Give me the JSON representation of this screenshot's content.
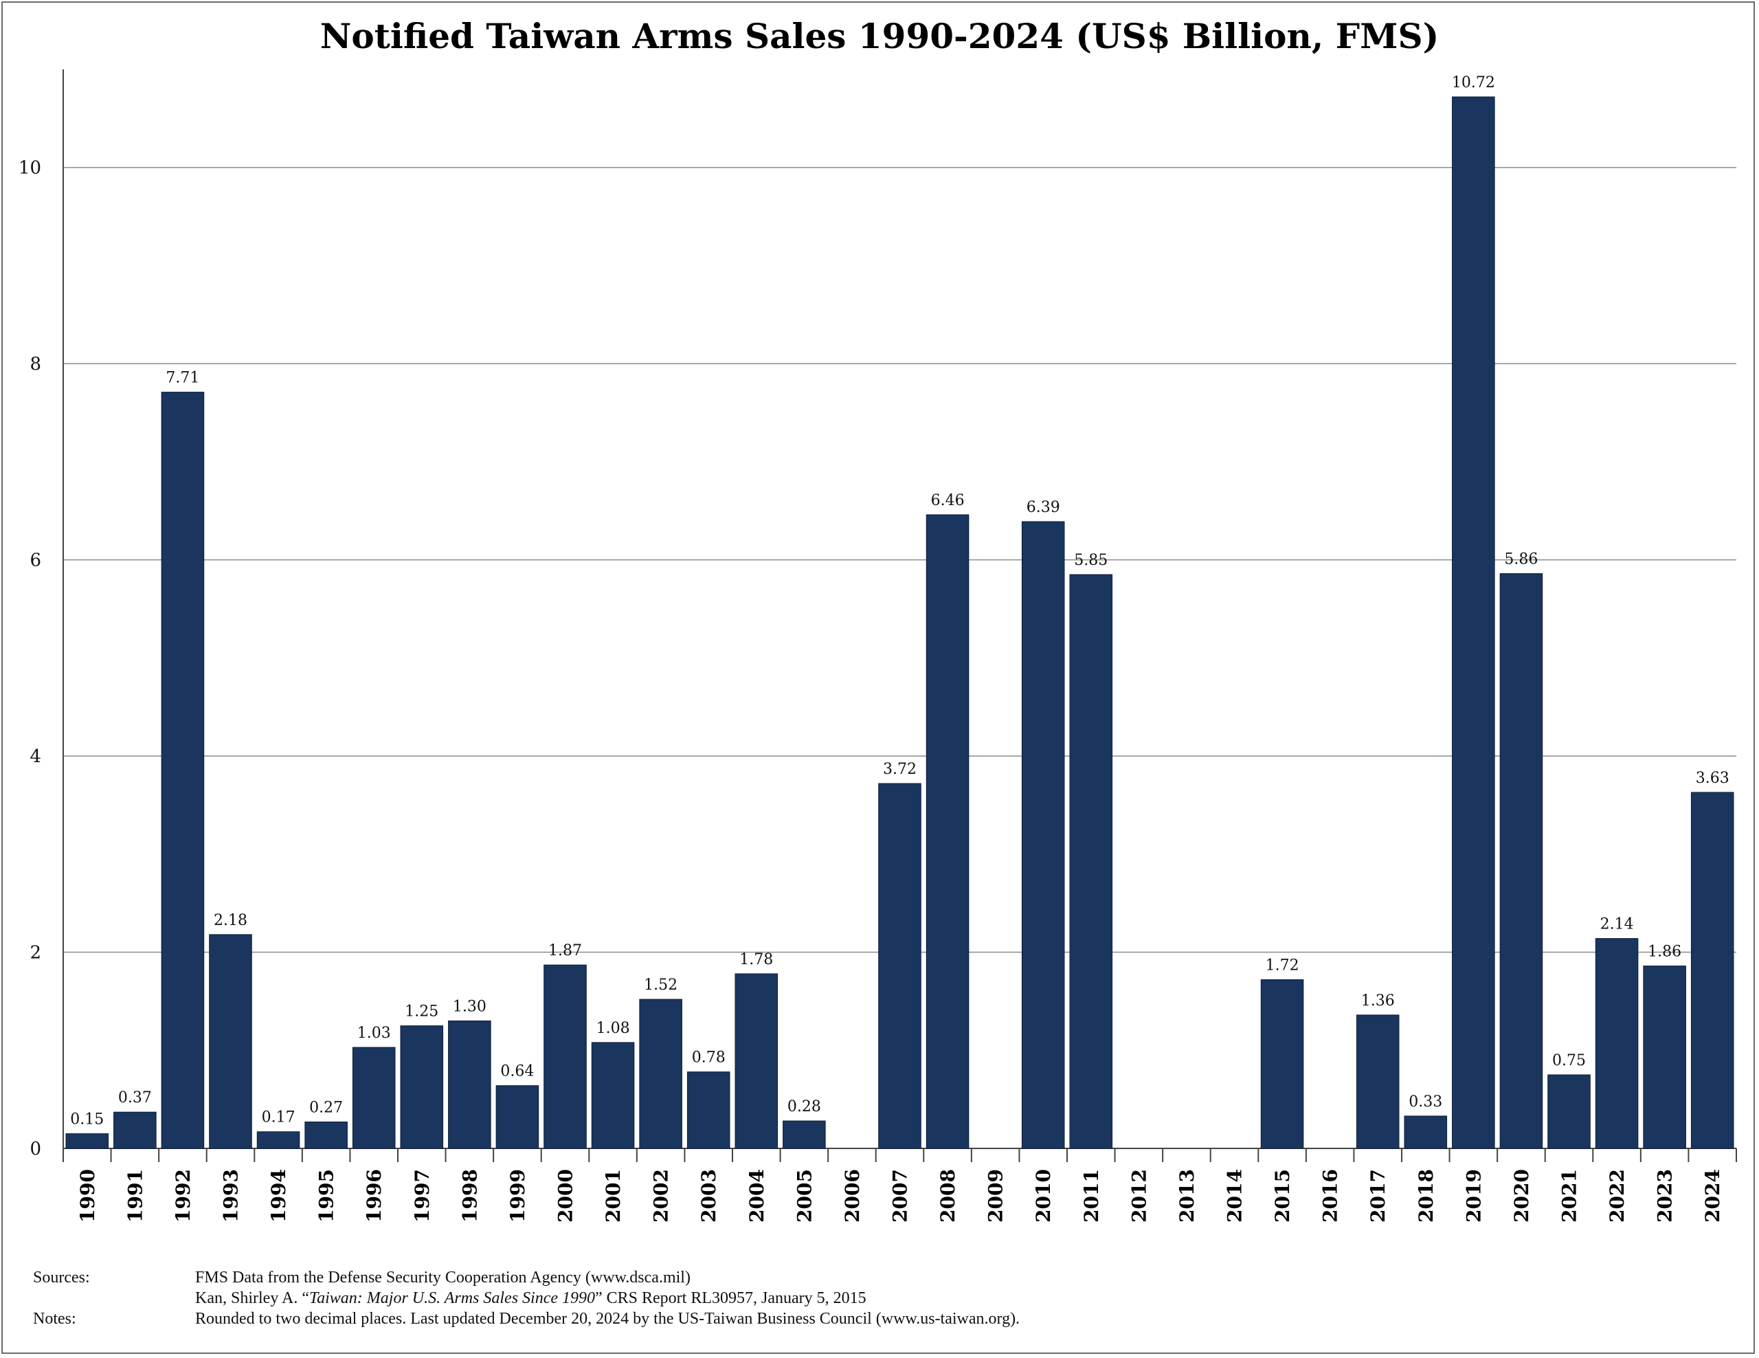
{
  "chart_data": {
    "type": "bar",
    "title": "Notified Taiwan Arms Sales 1990-2024 (US$ Billion, FMS)",
    "xlabel": "",
    "ylabel": "",
    "ylim": [
      0,
      11
    ],
    "yticks": [
      0,
      2,
      4,
      6,
      8,
      10
    ],
    "grid": true,
    "legend": "none",
    "bar_color": "#1a355e",
    "categories": [
      "1990",
      "1991",
      "1992",
      "1993",
      "1994",
      "1995",
      "1996",
      "1997",
      "1998",
      "1999",
      "2000",
      "2001",
      "2002",
      "2003",
      "2004",
      "2005",
      "2006",
      "2007",
      "2008",
      "2009",
      "2010",
      "2011",
      "2012",
      "2013",
      "2014",
      "2015",
      "2016",
      "2017",
      "2018",
      "2019",
      "2020",
      "2021",
      "2022",
      "2023",
      "2024"
    ],
    "values": [
      0.15,
      0.37,
      7.71,
      2.18,
      0.17,
      0.27,
      1.03,
      1.25,
      1.3,
      0.64,
      1.87,
      1.08,
      1.52,
      0.78,
      1.78,
      0.28,
      null,
      3.72,
      6.46,
      null,
      6.39,
      5.85,
      null,
      null,
      null,
      1.72,
      null,
      1.36,
      0.33,
      10.72,
      5.86,
      0.75,
      2.14,
      1.86,
      3.63
    ],
    "value_labels": [
      "0.15",
      "0.37",
      "7.71",
      "2.18",
      "0.17",
      "0.27",
      "1.03",
      "1.25",
      "1.30",
      "0.64",
      "1.87",
      "1.08",
      "1.52",
      "0.78",
      "1.78",
      "0.28",
      "",
      "3.72",
      "6.46",
      "",
      "6.39",
      "5.85",
      "",
      "",
      "",
      "1.72",
      "",
      "1.36",
      "0.33",
      "10.72",
      "5.86",
      "0.75",
      "2.14",
      "1.86",
      "3.63"
    ]
  },
  "notes": {
    "sources_label": "Sources:",
    "source_1": "FMS Data from the Defense Security Cooperation Agency (www.dsca.mil)",
    "source_2_prefix": "Kan, Shirley A. “",
    "source_2_title": "Taiwan: Major U.S. Arms Sales Since 1990",
    "source_2_suffix": "” CRS Report RL30957, January 5, 2015",
    "notes_label": "Notes:",
    "note_1": "Rounded to two decimal places. Last updated December 20, 2024 by the US-Taiwan Business Council (www.us-taiwan.org)."
  }
}
